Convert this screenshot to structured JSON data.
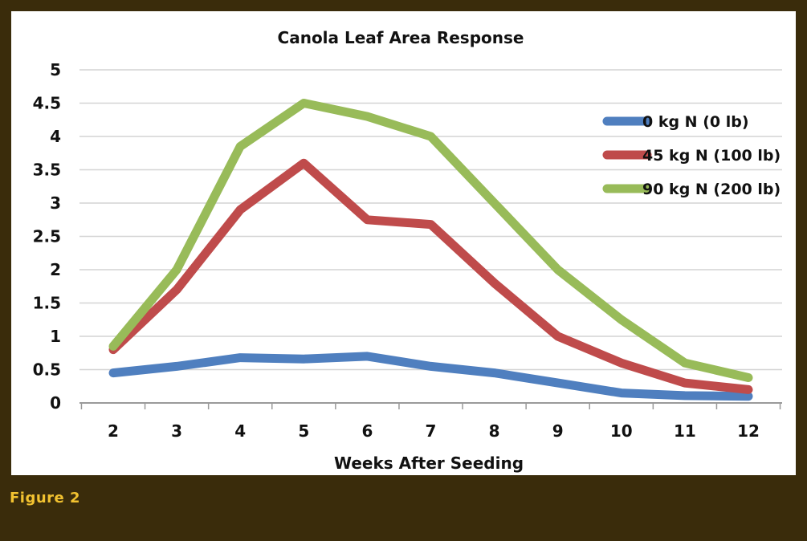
{
  "figure": {
    "caption": "Figure 2",
    "frame_color": "#3a2c0b",
    "caption_color": "#f2c230"
  },
  "chart_data": {
    "type": "line",
    "title": "Canola Leaf Area Response",
    "xlabel": "Weeks After Seeding",
    "ylabel": "",
    "x": [
      2,
      3,
      4,
      5,
      6,
      7,
      8,
      9,
      10,
      11,
      12
    ],
    "x_tick_labels": [
      "2",
      "3",
      "4",
      "5",
      "6",
      "7",
      "8",
      "9",
      "10",
      "11",
      "12"
    ],
    "y_tick_labels": [
      "0",
      "0.5",
      "1",
      "1.5",
      "2",
      "2.5",
      "3",
      "3.5",
      "4",
      "4.5",
      "5"
    ],
    "ylim": [
      0,
      5
    ],
    "grid": "horizontal",
    "legend_position": "right",
    "series": [
      {
        "name": "0 kg N (0 lb)",
        "color": "#4f7fbf",
        "values": [
          0.45,
          0.55,
          0.68,
          0.66,
          0.7,
          0.55,
          0.45,
          0.3,
          0.15,
          0.11,
          0.1
        ]
      },
      {
        "name": "45 kg N (100 lb)",
        "color": "#bf4b4b",
        "values": [
          0.8,
          1.7,
          2.9,
          3.6,
          2.75,
          2.68,
          1.8,
          1.0,
          0.6,
          0.3,
          0.2
        ]
      },
      {
        "name": "90 kg N (200 lb)",
        "color": "#98bb59",
        "values": [
          0.85,
          2.0,
          3.85,
          4.5,
          4.3,
          4.0,
          3.0,
          2.0,
          1.25,
          0.6,
          0.38
        ]
      }
    ]
  }
}
